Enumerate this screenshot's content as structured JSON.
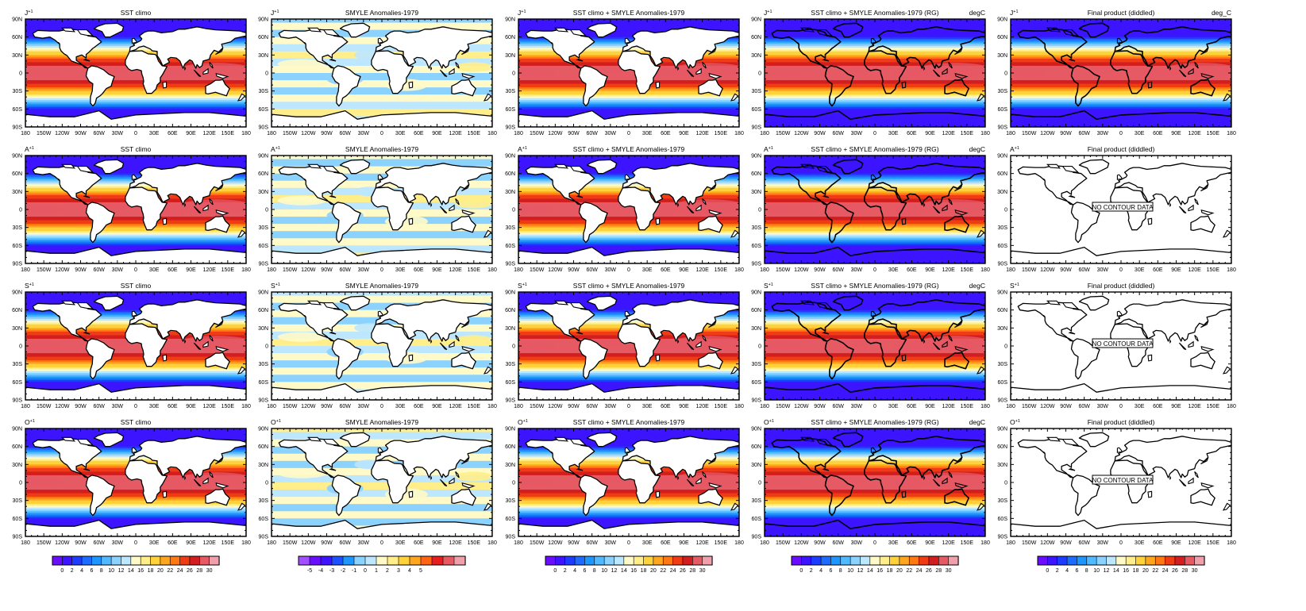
{
  "figure": {
    "rows": [
      {
        "month_label": "J",
        "superscript": "+1"
      },
      {
        "month_label": "A",
        "superscript": "+1"
      },
      {
        "month_label": "S",
        "superscript": "+1"
      },
      {
        "month_label": "O",
        "superscript": "+1"
      }
    ],
    "columns": [
      {
        "title": "SST climo",
        "units": "",
        "kind": "sst"
      },
      {
        "title": "SMYLE Anomalies-1979",
        "units": "",
        "kind": "anom"
      },
      {
        "title": "SST climo + SMYLE Anomalies-1979",
        "units": "",
        "kind": "sst"
      },
      {
        "title": "SST climo + SMYLE Anomalies-1979 (RG)",
        "units": "degC",
        "kind": "rg"
      },
      {
        "title": "Final product (diddled)",
        "units_first_row": "deg_C",
        "kind": "final"
      }
    ],
    "final_product_rows_with_data": [
      true,
      false,
      false,
      false
    ],
    "no_data_label": "NO CONTOUR DATA",
    "lat_ticks": [
      "90N",
      "60N",
      "30N",
      "0",
      "30S",
      "60S",
      "90S"
    ],
    "lon_ticks": [
      "180",
      "150W",
      "120W",
      "90W",
      "60W",
      "30W",
      "0",
      "30E",
      "60E",
      "90E",
      "120E",
      "150E",
      "180"
    ]
  },
  "colorbars": {
    "sst": {
      "labels": [
        "0",
        "2",
        "4",
        "6",
        "8",
        "10",
        "12",
        "14",
        "16",
        "18",
        "20",
        "22",
        "24",
        "26",
        "28",
        "30"
      ],
      "colors": [
        "#6a0dff",
        "#3c14ff",
        "#1e3cff",
        "#1e6cff",
        "#1e96ff",
        "#50b9ff",
        "#8cd2ff",
        "#bde6ff",
        "#fffac8",
        "#ffee8a",
        "#ffd23c",
        "#ffa51e",
        "#ff7814",
        "#f03c14",
        "#d21e1e",
        "#e65a64",
        "#f0a0aa"
      ]
    },
    "anom": {
      "labels": [
        "-5",
        "-4",
        "-3",
        "-2",
        "-1",
        "0",
        "1",
        "2",
        "3",
        "4",
        "5"
      ],
      "colors": [
        "#a050ff",
        "#6a0dff",
        "#3c14ff",
        "#1e50ff",
        "#1e96ff",
        "#8cd2ff",
        "#bde6ff",
        "#fffac8",
        "#ffee8a",
        "#ffd23c",
        "#ffa51e",
        "#ff6414",
        "#e61e1e",
        "#e65a64",
        "#f0a0aa"
      ]
    }
  }
}
